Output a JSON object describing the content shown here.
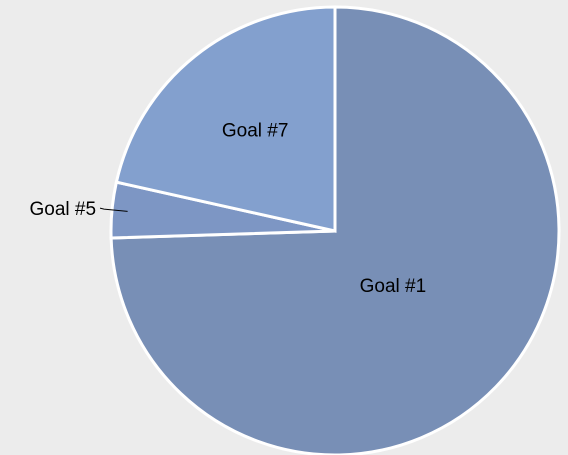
{
  "chart_data": {
    "type": "pie",
    "title": "",
    "start_angle_deg": 0,
    "direction": "clockwise",
    "slices": [
      {
        "label": "Goal #1",
        "value": 74.5,
        "color": "#788fb6",
        "label_style": "inside"
      },
      {
        "label": "Goal #5",
        "value": 4.0,
        "color": "#7d96c4",
        "label_style": "outside"
      },
      {
        "label": "Goal #7",
        "value": 21.5,
        "color": "#83a0ce",
        "label_style": "inside"
      }
    ]
  }
}
